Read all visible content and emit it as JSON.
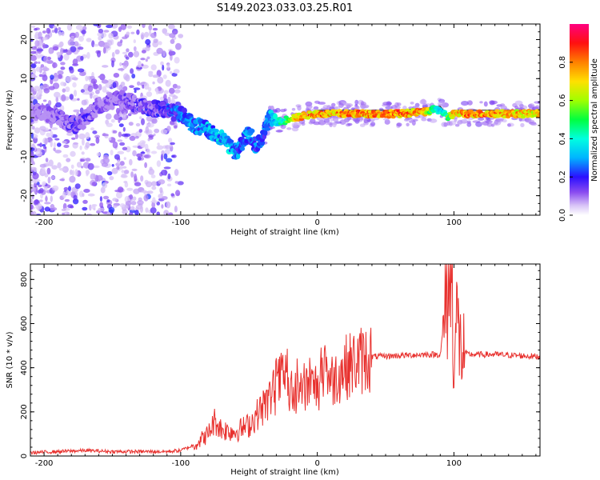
{
  "chart_data": [
    {
      "type": "heatmap",
      "title": "S149.2023.033.03.25.R01",
      "xlabel": "Height of straight line (km)",
      "ylabel": "Frequency (Hz)",
      "xlim": [
        -210,
        163
      ],
      "ylim": [
        -25,
        24
      ],
      "xticks": [
        -200,
        -100,
        0,
        100
      ],
      "xtick_labels": [
        "-200",
        "-100",
        "0",
        "100"
      ],
      "yticks": [
        -20,
        -10,
        0,
        10,
        20
      ],
      "ytick_labels": [
        "-20",
        "-10",
        "0",
        "10",
        "20"
      ],
      "colorbar": {
        "label": "Normalized spectral amplitude",
        "range": [
          0,
          1
        ],
        "ticks": [
          0.0,
          0.2,
          0.4,
          0.6,
          0.8
        ],
        "tick_labels": [
          "0.0",
          "0.2",
          "0.4",
          "0.6",
          "0.8"
        ]
      },
      "ridge": {
        "x": [
          -210,
          -190,
          -175,
          -160,
          -145,
          -130,
          -115,
          -100,
          -90,
          -80,
          -70,
          -60,
          -55,
          -50,
          -45,
          -40,
          -35,
          -30,
          -25,
          -20,
          -15,
          -10,
          0,
          10,
          20,
          40,
          60,
          80,
          85,
          90,
          95,
          100,
          120,
          140,
          163
        ],
        "y": [
          2,
          0,
          -2,
          3,
          5,
          3,
          2,
          1,
          -2,
          -3,
          -5,
          -9,
          -7,
          -4,
          -7,
          -5,
          0,
          -1,
          -1,
          0,
          0,
          0.5,
          1,
          1,
          1,
          1,
          1,
          1.5,
          2,
          2,
          0,
          1,
          1,
          1,
          1
        ],
        "amplitude": [
          0.1,
          0.15,
          0.2,
          0.15,
          0.15,
          0.2,
          0.2,
          0.3,
          0.35,
          0.35,
          0.4,
          0.35,
          0.3,
          0.35,
          0.3,
          0.3,
          0.35,
          0.4,
          0.45,
          0.6,
          0.8,
          0.8,
          0.85,
          0.8,
          0.85,
          0.85,
          0.85,
          0.8,
          0.5,
          0.4,
          0.5,
          0.8,
          0.85,
          0.8,
          0.75
        ]
      }
    },
    {
      "type": "line",
      "xlabel": "Height of straight line (km)",
      "ylabel": "SNR (10 * v/v)",
      "xlim": [
        -210,
        163
      ],
      "ylim": [
        0,
        870
      ],
      "xticks": [
        -200,
        -100,
        0,
        100
      ],
      "xtick_labels": [
        "-200",
        "-100",
        "0",
        "100"
      ],
      "yticks": [
        0,
        200,
        400,
        600,
        800
      ],
      "ytick_labels": [
        "0",
        "200",
        "400",
        "600",
        "800"
      ],
      "color": "#e8312e",
      "series": [
        {
          "x": [
            -210,
            -190,
            -170,
            -150,
            -130,
            -110,
            -100,
            -90,
            -80,
            -75,
            -70,
            -60,
            -50,
            -40,
            -30,
            -25,
            -20,
            -10,
            0,
            10,
            20,
            30,
            40,
            60,
            80,
            90,
            95,
            98,
            100,
            102,
            105,
            110,
            130,
            163
          ],
          "y": [
            15,
            20,
            25,
            20,
            20,
            20,
            25,
            50,
            100,
            160,
            120,
            110,
            140,
            220,
            300,
            380,
            260,
            300,
            320,
            340,
            400,
            430,
            450,
            455,
            460,
            460,
            720,
            860,
            450,
            620,
            480,
            460,
            460,
            450
          ]
        }
      ]
    }
  ]
}
